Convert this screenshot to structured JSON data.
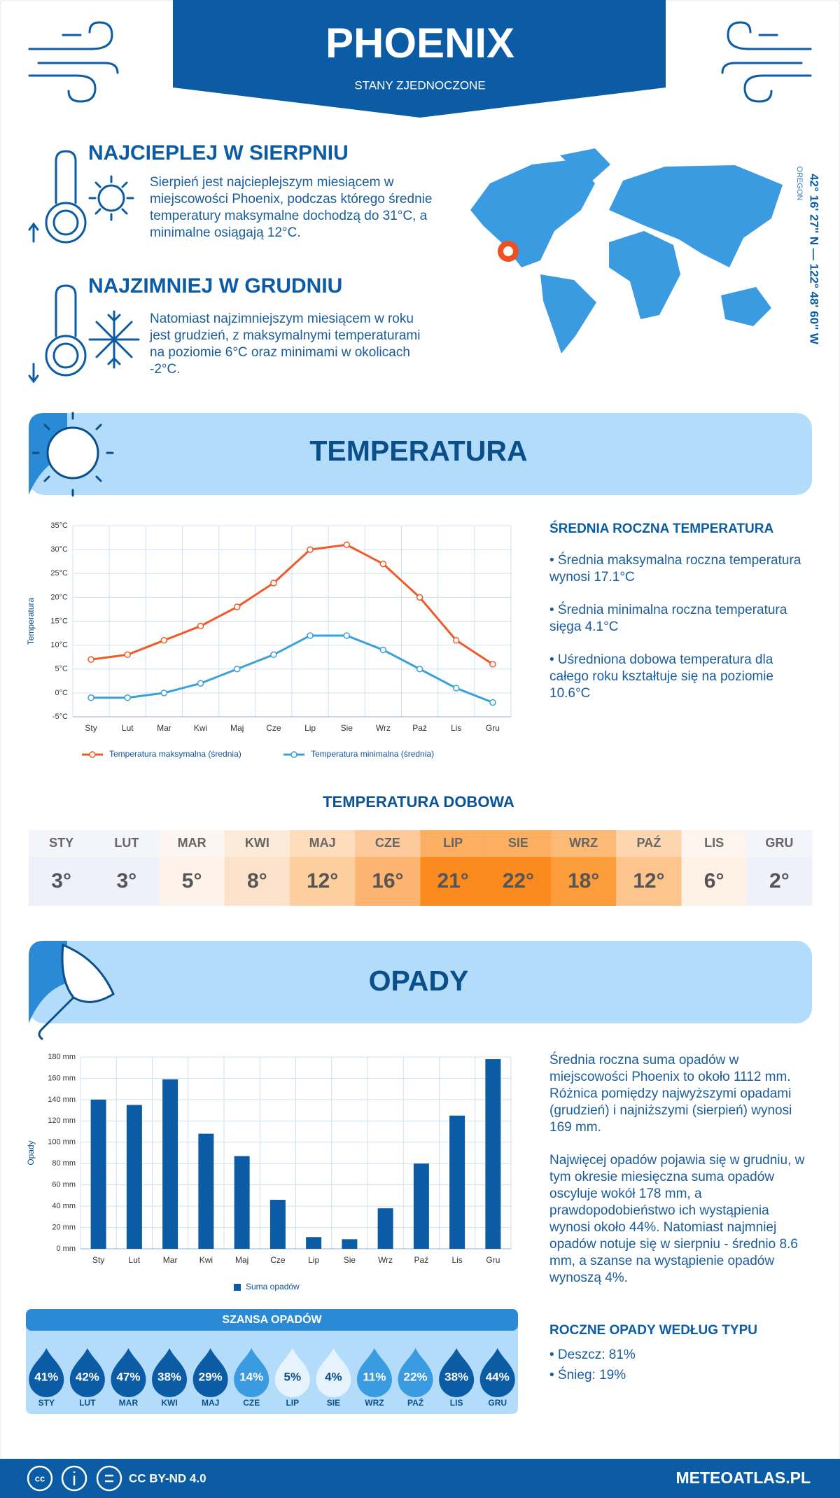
{
  "header": {
    "title": "PHOENIX",
    "subtitle": "STANY ZJEDNOCZONE"
  },
  "hottest": {
    "title": "NAJCIEPLEJ W SIERPNIU",
    "text": "Sierpień jest najcieplejszym miesiącem w miejscowości Phoenix, podczas którego średnie temperatury maksymalne dochodzą do 31°C, a minimalne osiągają 12°C."
  },
  "coldest": {
    "title": "NAJZIMNIEJ W GRUDNIU",
    "text": "Natomiast najzimniejszym miesiącem w roku jest grudzień, z maksymalnymi temperaturami na poziomie 6°C oraz minimami w okolicach -2°C."
  },
  "map": {
    "coordinates": "42° 16' 27'' N — 122° 48' 60'' W",
    "region": "OREGON"
  },
  "temperature_section": {
    "title": "TEMPERATURA"
  },
  "temperature_summary": {
    "title": "ŚREDNIA ROCZNA TEMPERATURA",
    "items": [
      "• Średnia maksymalna roczna temperatura wynosi 17.1°C",
      "• Średnia minimalna roczna temperatura sięga 4.1°C",
      "• Uśredniona dobowa temperatura dla całego roku kształtuje się na poziomie 10.6°C"
    ]
  },
  "daily_temperature": {
    "title": "TEMPERATURA DOBOWA",
    "months": [
      "STY",
      "LUT",
      "MAR",
      "KWI",
      "MAJ",
      "CZE",
      "LIP",
      "SIE",
      "WRZ",
      "PAŹ",
      "LIS",
      "GRU"
    ],
    "values": [
      "3°",
      "3°",
      "5°",
      "8°",
      "12°",
      "16°",
      "21°",
      "22°",
      "18°",
      "12°",
      "6°",
      "2°"
    ],
    "colors": [
      "#f0f0fa",
      "#f0f0fa",
      "#fdf3ea",
      "#fde2cb",
      "#fdcf9f",
      "#fdb470",
      "#fb8b1e",
      "#fb8b1e",
      "#fc9c3b",
      "#fdc58e",
      "#fdf0e5",
      "#f0f0fa"
    ]
  },
  "precipitation_section": {
    "title": "OPADY"
  },
  "precipitation_text": [
    "Średnia roczna suma opadów w miejscowości Phoenix to około 1112 mm. Różnica pomiędzy najwyższymi opadami (grudzień) i najniższymi (sierpień) wynosi 169 mm.",
    "Najwięcej opadów pojawia się w grudniu, w tym okresie miesięczna suma opadów oscyluje wokół 178 mm, a prawdopodobieństwo ich wystąpienia wynosi około 44%. Natomiast najmniej opadów notuje się w sierpniu - średnio 8.6 mm, a szanse na wystąpienie opadów wynoszą 4%."
  ],
  "precipitation_types": {
    "title": "ROCZNE OPADY WEDŁUG TYPU",
    "items": [
      "• Deszcz: 81%",
      "• Śnieg: 19%"
    ]
  },
  "footer": {
    "license": "CC BY-ND 4.0",
    "site": "METEOATLAS.PL"
  },
  "chart_data": [
    {
      "type": "line",
      "y_label": "Temperatura",
      "categories": [
        "Sty",
        "Lut",
        "Mar",
        "Kwi",
        "Maj",
        "Cze",
        "Lip",
        "Sie",
        "Wrz",
        "Paź",
        "Lis",
        "Gru"
      ],
      "series": [
        {
          "name": "Temperatura maksymalna (średnia)",
          "color": "#f05a28",
          "values": [
            7,
            8,
            11,
            14,
            18,
            23,
            30,
            31,
            27,
            20,
            11,
            6
          ]
        },
        {
          "name": "Temperatura minimalna (średnia)",
          "color": "#3aa0dc",
          "values": [
            -1,
            -1,
            0,
            2,
            5,
            8,
            12,
            12,
            9,
            5,
            1,
            -2
          ]
        }
      ],
      "ylim": [
        -5,
        35
      ],
      "yticks": [
        {
          "value": -5,
          "label": "-5°C"
        },
        {
          "value": 0,
          "label": "0°C"
        },
        {
          "value": 5,
          "label": "5°C"
        },
        {
          "value": 10,
          "label": "10°C"
        },
        {
          "value": 15,
          "label": "15°C"
        },
        {
          "value": 20,
          "label": "20°C"
        },
        {
          "value": 25,
          "label": "25°C"
        },
        {
          "value": 30,
          "label": "30°C"
        },
        {
          "value": 35,
          "label": "35°C"
        }
      ],
      "grid": true
    },
    {
      "type": "bar",
      "y_label": "Opady",
      "categories": [
        "Sty",
        "Lut",
        "Mar",
        "Kwi",
        "Maj",
        "Cze",
        "Lip",
        "Sie",
        "Wrz",
        "Paź",
        "Lis",
        "Gru"
      ],
      "series": [
        {
          "name": "Suma opadów",
          "color": "#0b5ca4",
          "values": [
            140,
            135,
            159,
            108,
            87,
            46,
            11,
            9,
            38,
            80,
            125,
            178
          ]
        }
      ],
      "ylim": [
        0,
        180
      ],
      "yticks": [
        {
          "value": 0,
          "label": "0 mm"
        },
        {
          "value": 20,
          "label": "20 mm"
        },
        {
          "value": 40,
          "label": "40 mm"
        },
        {
          "value": 60,
          "label": "60 mm"
        },
        {
          "value": 80,
          "label": "80 mm"
        },
        {
          "value": 100,
          "label": "100 mm"
        },
        {
          "value": 120,
          "label": "120 mm"
        },
        {
          "value": 140,
          "label": "140 mm"
        },
        {
          "value": 160,
          "label": "160 mm"
        },
        {
          "value": 180,
          "label": "180 mm"
        }
      ],
      "grid": true
    },
    {
      "type": "drop",
      "title": "SZANSA OPADÓW",
      "categories": [
        "STY",
        "LUT",
        "MAR",
        "KWI",
        "MAJ",
        "CZE",
        "LIP",
        "SIE",
        "WRZ",
        "PAŹ",
        "LIS",
        "GRU"
      ],
      "values": [
        41,
        42,
        47,
        38,
        29,
        14,
        5,
        4,
        11,
        22,
        38,
        44
      ],
      "value_labels": [
        "41%",
        "42%",
        "47%",
        "38%",
        "29%",
        "14%",
        "5%",
        "4%",
        "11%",
        "22%",
        "38%",
        "44%"
      ],
      "colors": [
        "#0b5ca4",
        "#0b5ca4",
        "#0b5ca4",
        "#0b5ca4",
        "#0b5ca4",
        "#3a9be0",
        "#e6f2fc",
        "#e6f2fc",
        "#3a9be0",
        "#3a9be0",
        "#0b5ca4",
        "#0b5ca4"
      ],
      "label_colors": [
        "#ffffff",
        "#ffffff",
        "#ffffff",
        "#ffffff",
        "#ffffff",
        "#ffffff",
        "#0b4f8a",
        "#0b4f8a",
        "#ffffff",
        "#ffffff",
        "#ffffff",
        "#ffffff"
      ]
    }
  ]
}
